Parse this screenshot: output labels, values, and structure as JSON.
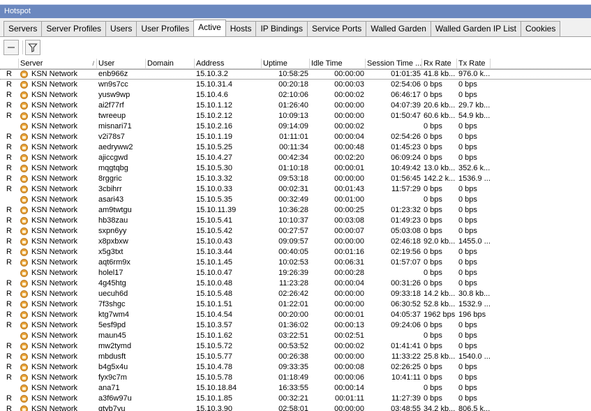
{
  "window": {
    "title": "Hotspot"
  },
  "tabs": [
    {
      "label": "Servers",
      "active": false
    },
    {
      "label": "Server Profiles",
      "active": false
    },
    {
      "label": "Users",
      "active": false
    },
    {
      "label": "User Profiles",
      "active": false
    },
    {
      "label": "Active",
      "active": true
    },
    {
      "label": "Hosts",
      "active": false
    },
    {
      "label": "IP Bindings",
      "active": false
    },
    {
      "label": "Service Ports",
      "active": false
    },
    {
      "label": "Walled Garden",
      "active": false
    },
    {
      "label": "Walled Garden IP List",
      "active": false
    },
    {
      "label": "Cookies",
      "active": false
    }
  ],
  "toolbar": {
    "remove_icon": "minus-icon",
    "filter_icon": "filter-icon"
  },
  "table": {
    "columns": [
      "",
      "Server",
      "User",
      "Domain",
      "Address",
      "Uptime",
      "Idle Time",
      "Session Time ...",
      "Rx Rate",
      "Tx Rate"
    ],
    "sorted_column": "Server",
    "rows": [
      {
        "flag": "R",
        "server": "KSN Network",
        "user": "enb966z",
        "domain": "",
        "address": "15.10.3.2",
        "uptime": "10:58:25",
        "idle": "00:00:00",
        "session": "01:01:35",
        "rx": "41.8 kb...",
        "tx": "976.0 k..."
      },
      {
        "flag": "R",
        "server": "KSN Network",
        "user": "wn9s7cc",
        "domain": "",
        "address": "15.10.31.4",
        "uptime": "00:20:18",
        "idle": "00:00:03",
        "session": "02:54:06",
        "rx": "0 bps",
        "tx": "0 bps"
      },
      {
        "flag": "R",
        "server": "KSN Network",
        "user": "yusw9wp",
        "domain": "",
        "address": "15.10.4.6",
        "uptime": "02:10:06",
        "idle": "00:00:02",
        "session": "06:46:17",
        "rx": "0 bps",
        "tx": "0 bps"
      },
      {
        "flag": "R",
        "server": "KSN Network",
        "user": "ai2f77rf",
        "domain": "",
        "address": "15.10.1.12",
        "uptime": "01:26:40",
        "idle": "00:00:00",
        "session": "04:07:39",
        "rx": "20.6 kb...",
        "tx": "29.7 kb..."
      },
      {
        "flag": "R",
        "server": "KSN Network",
        "user": "twreeup",
        "domain": "",
        "address": "15.10.2.12",
        "uptime": "10:09:13",
        "idle": "00:00:00",
        "session": "01:50:47",
        "rx": "60.6 kb...",
        "tx": "54.9 kb..."
      },
      {
        "flag": "",
        "server": "KSN Network",
        "user": "misnari71",
        "domain": "",
        "address": "15.10.2.16",
        "uptime": "09:14:09",
        "idle": "00:00:02",
        "session": "",
        "rx": "0 bps",
        "tx": "0 bps"
      },
      {
        "flag": "R",
        "server": "KSN Network",
        "user": "v2i78s7",
        "domain": "",
        "address": "15.10.1.19",
        "uptime": "01:11:01",
        "idle": "00:00:04",
        "session": "02:54:26",
        "rx": "0 bps",
        "tx": "0 bps"
      },
      {
        "flag": "R",
        "server": "KSN Network",
        "user": "aedryww2",
        "domain": "",
        "address": "15.10.5.25",
        "uptime": "00:11:34",
        "idle": "00:00:48",
        "session": "01:45:23",
        "rx": "0 bps",
        "tx": "0 bps"
      },
      {
        "flag": "R",
        "server": "KSN Network",
        "user": "ajiccgwd",
        "domain": "",
        "address": "15.10.4.27",
        "uptime": "00:42:34",
        "idle": "00:02:20",
        "session": "06:09:24",
        "rx": "0 bps",
        "tx": "0 bps"
      },
      {
        "flag": "R",
        "server": "KSN Network",
        "user": "mqgtqbg",
        "domain": "",
        "address": "15.10.5.30",
        "uptime": "01:10:18",
        "idle": "00:00:01",
        "session": "10:49:42",
        "rx": "13.0 kb...",
        "tx": "352.6 k..."
      },
      {
        "flag": "R",
        "server": "KSN Network",
        "user": "8rggric",
        "domain": "",
        "address": "15.10.3.32",
        "uptime": "09:53:18",
        "idle": "00:00:00",
        "session": "01:56:45",
        "rx": "142.2 k...",
        "tx": "1536.9 ..."
      },
      {
        "flag": "R",
        "server": "KSN Network",
        "user": "3cbihrr",
        "domain": "",
        "address": "15.10.0.33",
        "uptime": "00:02:31",
        "idle": "00:01:43",
        "session": "11:57:29",
        "rx": "0 bps",
        "tx": "0 bps"
      },
      {
        "flag": "",
        "server": "KSN Network",
        "user": "asari43",
        "domain": "",
        "address": "15.10.5.35",
        "uptime": "00:32:49",
        "idle": "00:01:00",
        "session": "",
        "rx": "0 bps",
        "tx": "0 bps"
      },
      {
        "flag": "R",
        "server": "KSN Network",
        "user": "am9twtgu",
        "domain": "",
        "address": "15.10.11.39",
        "uptime": "10:36:28",
        "idle": "00:00:25",
        "session": "01:23:32",
        "rx": "0 bps",
        "tx": "0 bps"
      },
      {
        "flag": "R",
        "server": "KSN Network",
        "user": "hb38zau",
        "domain": "",
        "address": "15.10.5.41",
        "uptime": "10:10:37",
        "idle": "00:03:08",
        "session": "01:49:23",
        "rx": "0 bps",
        "tx": "0 bps"
      },
      {
        "flag": "R",
        "server": "KSN Network",
        "user": "sxpn6yy",
        "domain": "",
        "address": "15.10.5.42",
        "uptime": "00:27:57",
        "idle": "00:00:07",
        "session": "05:03:08",
        "rx": "0 bps",
        "tx": "0 bps"
      },
      {
        "flag": "R",
        "server": "KSN Network",
        "user": "x8pxbxw",
        "domain": "",
        "address": "15.10.0.43",
        "uptime": "09:09:57",
        "idle": "00:00:00",
        "session": "02:46:18",
        "rx": "92.0 kb...",
        "tx": "1455.0 ..."
      },
      {
        "flag": "R",
        "server": "KSN Network",
        "user": "x5g3txt",
        "domain": "",
        "address": "15.10.3.44",
        "uptime": "00:40:05",
        "idle": "00:01:16",
        "session": "02:19:56",
        "rx": "0 bps",
        "tx": "0 bps"
      },
      {
        "flag": "R",
        "server": "KSN Network",
        "user": "aqt6rm9x",
        "domain": "",
        "address": "15.10.1.45",
        "uptime": "10:02:53",
        "idle": "00:06:31",
        "session": "01:57:07",
        "rx": "0 bps",
        "tx": "0 bps"
      },
      {
        "flag": "",
        "server": "KSN Network",
        "user": "holel17",
        "domain": "",
        "address": "15.10.0.47",
        "uptime": "19:26:39",
        "idle": "00:00:28",
        "session": "",
        "rx": "0 bps",
        "tx": "0 bps"
      },
      {
        "flag": "R",
        "server": "KSN Network",
        "user": "4g45htg",
        "domain": "",
        "address": "15.10.0.48",
        "uptime": "11:23:28",
        "idle": "00:00:04",
        "session": "00:31:26",
        "rx": "0 bps",
        "tx": "0 bps"
      },
      {
        "flag": "R",
        "server": "KSN Network",
        "user": "uecuh6d",
        "domain": "",
        "address": "15.10.5.48",
        "uptime": "02:26:42",
        "idle": "00:00:00",
        "session": "09:33:18",
        "rx": "14.2 kb...",
        "tx": "30.8 kb..."
      },
      {
        "flag": "R",
        "server": "KSN Network",
        "user": "7f3shgc",
        "domain": "",
        "address": "15.10.1.51",
        "uptime": "01:22:01",
        "idle": "00:00:00",
        "session": "06:30:52",
        "rx": "52.8 kb...",
        "tx": "1532.9 ..."
      },
      {
        "flag": "R",
        "server": "KSN Network",
        "user": "ktg7wm4",
        "domain": "",
        "address": "15.10.4.54",
        "uptime": "00:20:00",
        "idle": "00:00:01",
        "session": "04:05:37",
        "rx": "1962 bps",
        "tx": "196 bps"
      },
      {
        "flag": "R",
        "server": "KSN Network",
        "user": "5esf9pd",
        "domain": "",
        "address": "15.10.3.57",
        "uptime": "01:36:02",
        "idle": "00:00:13",
        "session": "09:24:06",
        "rx": "0 bps",
        "tx": "0 bps"
      },
      {
        "flag": "",
        "server": "KSN Network",
        "user": "maun45",
        "domain": "",
        "address": "15.10.1.62",
        "uptime": "03:22:51",
        "idle": "00:02:51",
        "session": "",
        "rx": "0 bps",
        "tx": "0 bps"
      },
      {
        "flag": "R",
        "server": "KSN Network",
        "user": "mw2tymd",
        "domain": "",
        "address": "15.10.5.72",
        "uptime": "00:53:52",
        "idle": "00:00:02",
        "session": "01:41:41",
        "rx": "0 bps",
        "tx": "0 bps"
      },
      {
        "flag": "R",
        "server": "KSN Network",
        "user": "mbdusft",
        "domain": "",
        "address": "15.10.5.77",
        "uptime": "00:26:38",
        "idle": "00:00:00",
        "session": "11:33:22",
        "rx": "25.8 kb...",
        "tx": "1540.0 ..."
      },
      {
        "flag": "R",
        "server": "KSN Network",
        "user": "b4g5x4u",
        "domain": "",
        "address": "15.10.4.78",
        "uptime": "09:33:35",
        "idle": "00:00:08",
        "session": "02:26:25",
        "rx": "0 bps",
        "tx": "0 bps"
      },
      {
        "flag": "R",
        "server": "KSN Network",
        "user": "fyx9c7m",
        "domain": "",
        "address": "15.10.5.78",
        "uptime": "01:18:49",
        "idle": "00:00:06",
        "session": "10:41:11",
        "rx": "0 bps",
        "tx": "0 bps"
      },
      {
        "flag": "",
        "server": "KSN Network",
        "user": "ana71",
        "domain": "",
        "address": "15.10.18.84",
        "uptime": "16:33:55",
        "idle": "00:00:14",
        "session": "",
        "rx": "0 bps",
        "tx": "0 bps"
      },
      {
        "flag": "R",
        "server": "KSN Network",
        "user": "a3f6w97u",
        "domain": "",
        "address": "15.10.1.85",
        "uptime": "00:32:21",
        "idle": "00:01:11",
        "session": "11:27:39",
        "rx": "0 bps",
        "tx": "0 bps"
      },
      {
        "flag": "R",
        "server": "KSN Network",
        "user": "qtyb7yu",
        "domain": "",
        "address": "15.10.3.90",
        "uptime": "02:58:01",
        "idle": "00:00:00",
        "session": "03:48:55",
        "rx": "34.2 kb...",
        "tx": "806.5 k..."
      }
    ]
  },
  "colors": {
    "titlebar": "#6b88bf",
    "server_icon": "#e8a33a"
  }
}
